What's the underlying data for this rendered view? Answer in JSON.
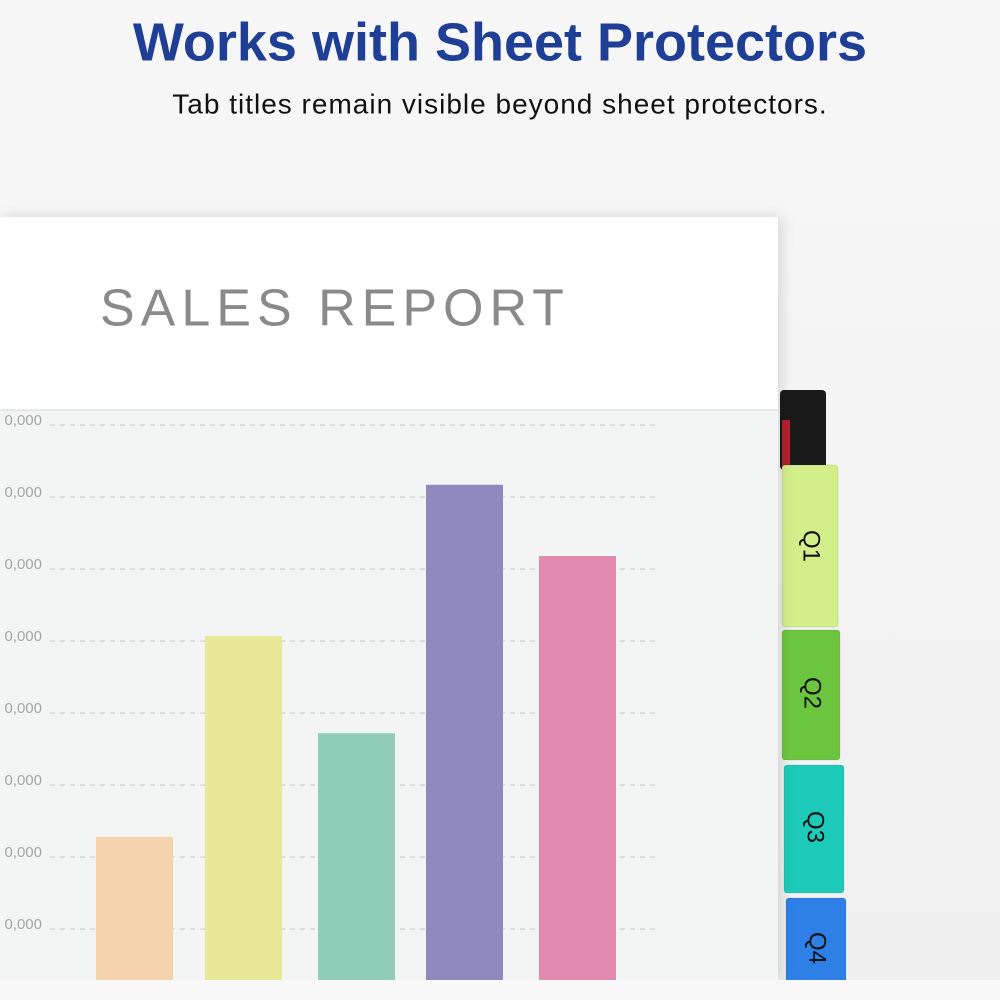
{
  "header": {
    "title": "Works with Sheet Protectors",
    "subtitle": "Tab titles remain visible beyond sheet protectors."
  },
  "report": {
    "title": "SALES REPORT"
  },
  "chart_data": {
    "type": "bar",
    "values": [
      2.28,
      5.07,
      3.72,
      7.17,
      6.18
    ],
    "colors": [
      "#f5d3ac",
      "#e8e898",
      "#91ceba",
      "#8f8abd",
      "#e289b0"
    ],
    "ylim": [
      0,
      8
    ],
    "yticks": [
      {
        "value": 1,
        "label": "0,000"
      },
      {
        "value": 2,
        "label": "0,000"
      },
      {
        "value": 3,
        "label": "0,000"
      },
      {
        "value": 4,
        "label": "0,000"
      },
      {
        "value": 5,
        "label": "0,000"
      },
      {
        "value": 6,
        "label": "0,000"
      },
      {
        "value": 7,
        "label": "0,000"
      },
      {
        "value": 8,
        "label": "0,000"
      }
    ],
    "grid": true
  },
  "tabs": [
    {
      "label": "Q1",
      "color": "#d3ef8a"
    },
    {
      "label": "Q2",
      "color": "#6cc53f"
    },
    {
      "label": "Q3",
      "color": "#1ecab9"
    },
    {
      "label": "Q4",
      "color": "#2e7fe6"
    }
  ]
}
